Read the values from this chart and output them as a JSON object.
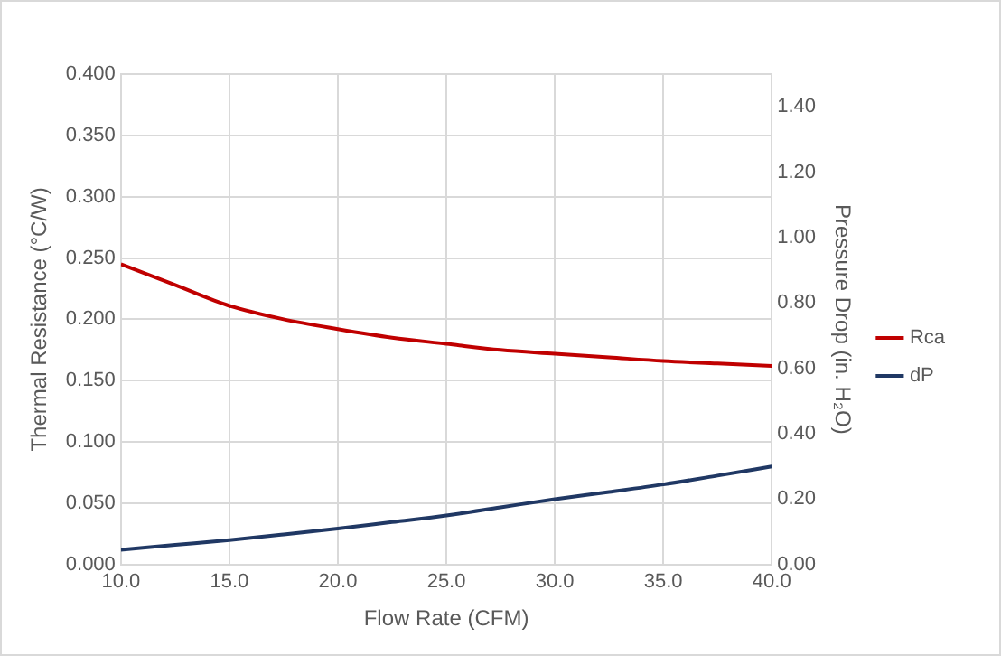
{
  "chart_data": {
    "type": "line",
    "xlabel": "Flow Rate (CFM)",
    "ylabel": "Thermal Resistance (°C/W)",
    "y2label": "Pressure Drop (in. H₂O)",
    "x": [
      10,
      12.5,
      15,
      17.5,
      20,
      22.5,
      25,
      27.5,
      30,
      32.5,
      35,
      37.5,
      40
    ],
    "series": [
      {
        "name": "Rca",
        "color": "#c00000",
        "values": [
          0.245,
          0.228,
          0.211,
          0.2,
          0.192,
          0.185,
          0.18,
          0.175,
          0.172,
          0.169,
          0.166,
          0.164,
          0.162
        ]
      },
      {
        "name": "dP",
        "color": "#203864",
        "axis": "y2",
        "values": [
          0.045,
          0.06,
          0.075,
          0.092,
          0.11,
          0.13,
          0.15,
          0.175,
          0.2,
          0.222,
          0.245,
          0.272,
          0.3
        ]
      }
    ],
    "xlim": [
      10,
      40
    ],
    "xticks": [
      {
        "value": 10,
        "label": "10.0"
      },
      {
        "value": 15,
        "label": "15.0"
      },
      {
        "value": 20,
        "label": "20.0"
      },
      {
        "value": 25,
        "label": "25.0"
      },
      {
        "value": 30,
        "label": "30.0"
      },
      {
        "value": 35,
        "label": "35.0"
      },
      {
        "value": 40,
        "label": "40.0"
      }
    ],
    "ylim": [
      0,
      0.4
    ],
    "yticks": [
      {
        "value": 0,
        "label": "0.000"
      },
      {
        "value": 0.05,
        "label": "0.050"
      },
      {
        "value": 0.1,
        "label": "0.100"
      },
      {
        "value": 0.15,
        "label": "0.150"
      },
      {
        "value": 0.2,
        "label": "0.200"
      },
      {
        "value": 0.25,
        "label": "0.250"
      },
      {
        "value": 0.3,
        "label": "0.300"
      },
      {
        "value": 0.35,
        "label": "0.350"
      },
      {
        "value": 0.4,
        "label": "0.400"
      }
    ],
    "y2lim": [
      0,
      1.5
    ],
    "y2ticks": [
      {
        "value": 0,
        "label": "0.00"
      },
      {
        "value": 0.2,
        "label": "0.20"
      },
      {
        "value": 0.4,
        "label": "0.40"
      },
      {
        "value": 0.6,
        "label": "0.60"
      },
      {
        "value": 0.8,
        "label": "0.80"
      },
      {
        "value": 1,
        "label": "1.00"
      },
      {
        "value": 1.2,
        "label": "1.20"
      },
      {
        "value": 1.4,
        "label": "1.40"
      }
    ],
    "grid": true,
    "legend": "right",
    "marker": "none",
    "line_style": "solid"
  }
}
